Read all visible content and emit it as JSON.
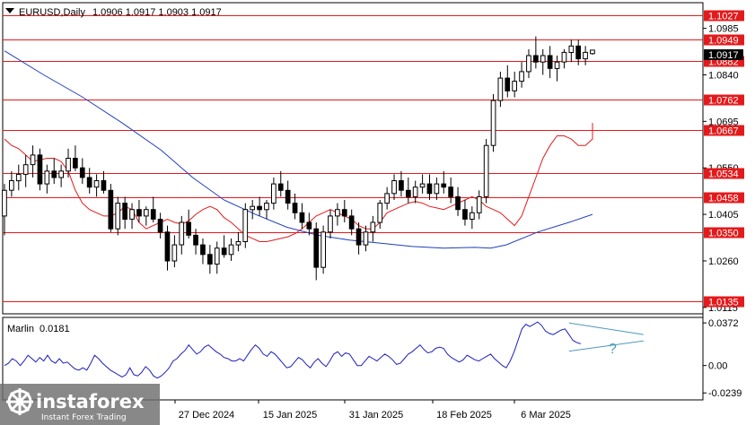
{
  "header": {
    "symbol_timeframe": "EURUSD,Daily",
    "ohlc": "1.0906 1.0917 1.0903 1.0917"
  },
  "colors": {
    "level_line": "#e31a1c",
    "level_label_bg": "#e31a1c",
    "ma_fast": "#e31a1c",
    "ma_slow": "#1f3fbf",
    "oscillator": "#1f1fbf",
    "trend_line": "#4a9ab8",
    "candle": "#000000",
    "current_price_bg": "#000000"
  },
  "logo": {
    "brand": "instaforex",
    "tagline": "Instant Forex Trading",
    "icon": "instaforex-logo-icon"
  },
  "chart_data": {
    "type": "candlestick",
    "price_axis": {
      "ylim": [
        1.0095,
        1.1065
      ],
      "tick_labels": [
        "1.0985",
        "1.0840",
        "1.0695",
        "1.0550",
        "1.0405",
        "1.0260",
        "1.0115"
      ]
    },
    "time_axis": {
      "labels": [
        "27 Dec 2024",
        "15 Jan 2025",
        "31 Jan 2025",
        "18 Feb 2025",
        "6 Mar 2025"
      ]
    },
    "current_price": "1.0917",
    "levels": [
      {
        "value": 1.1027,
        "label": "1.1027"
      },
      {
        "value": 1.0949,
        "label": "1.0949"
      },
      {
        "value": 1.0882,
        "label": "1.0882"
      },
      {
        "value": 1.0762,
        "label": "1.0762"
      },
      {
        "value": 1.0667,
        "label": "1.0667"
      },
      {
        "value": 1.0534,
        "label": "1.0534"
      },
      {
        "value": 1.0458,
        "label": "1.0458"
      },
      {
        "value": 1.035,
        "label": "1.0350"
      },
      {
        "value": 1.0135,
        "label": "1.0135"
      }
    ],
    "candles": [
      [
        1.04,
        1.05,
        1.034,
        1.048
      ],
      [
        1.048,
        1.054,
        1.046,
        1.051
      ],
      [
        1.051,
        1.056,
        1.048,
        1.053
      ],
      [
        1.053,
        1.059,
        1.049,
        1.056
      ],
      [
        1.056,
        1.062,
        1.052,
        1.059
      ],
      [
        1.059,
        1.061,
        1.048,
        1.05
      ],
      [
        1.05,
        1.056,
        1.047,
        1.054
      ],
      [
        1.054,
        1.058,
        1.05,
        1.052
      ],
      [
        1.052,
        1.056,
        1.049,
        1.054
      ],
      [
        1.054,
        1.061,
        1.052,
        1.058
      ],
      [
        1.058,
        1.062,
        1.054,
        1.055
      ],
      [
        1.055,
        1.058,
        1.05,
        1.052
      ],
      [
        1.052,
        1.055,
        1.047,
        1.049
      ],
      [
        1.049,
        1.053,
        1.046,
        1.051
      ],
      [
        1.051,
        1.054,
        1.047,
        1.048
      ],
      [
        1.048,
        1.05,
        1.035,
        1.036
      ],
      [
        1.036,
        1.046,
        1.034,
        1.044
      ],
      [
        1.044,
        1.046,
        1.036,
        1.039
      ],
      [
        1.039,
        1.044,
        1.036,
        1.042
      ],
      [
        1.042,
        1.045,
        1.038,
        1.04
      ],
      [
        1.04,
        1.043,
        1.037,
        1.042
      ],
      [
        1.042,
        1.046,
        1.038,
        1.039
      ],
      [
        1.039,
        1.041,
        1.033,
        1.035
      ],
      [
        1.035,
        1.037,
        1.023,
        1.026
      ],
      [
        1.026,
        1.034,
        1.024,
        1.031
      ],
      [
        1.031,
        1.04,
        1.028,
        1.038
      ],
      [
        1.038,
        1.042,
        1.033,
        1.034
      ],
      [
        1.034,
        1.036,
        1.028,
        1.031
      ],
      [
        1.031,
        1.033,
        1.025,
        1.028
      ],
      [
        1.028,
        1.031,
        1.022,
        1.025
      ],
      [
        1.025,
        1.032,
        1.022,
        1.03
      ],
      [
        1.03,
        1.034,
        1.027,
        1.028
      ],
      [
        1.028,
        1.033,
        1.026,
        1.031
      ],
      [
        1.031,
        1.035,
        1.029,
        1.032
      ],
      [
        1.032,
        1.044,
        1.03,
        1.042
      ],
      [
        1.042,
        1.045,
        1.039,
        1.043
      ],
      [
        1.043,
        1.046,
        1.04,
        1.042
      ],
      [
        1.042,
        1.045,
        1.039,
        1.044
      ],
      [
        1.044,
        1.052,
        1.042,
        1.05
      ],
      [
        1.05,
        1.054,
        1.046,
        1.048
      ],
      [
        1.048,
        1.051,
        1.042,
        1.044
      ],
      [
        1.044,
        1.047,
        1.039,
        1.041
      ],
      [
        1.041,
        1.044,
        1.036,
        1.038
      ],
      [
        1.038,
        1.041,
        1.034,
        1.036
      ],
      [
        1.036,
        1.038,
        1.02,
        1.024
      ],
      [
        1.024,
        1.037,
        1.022,
        1.035
      ],
      [
        1.035,
        1.042,
        1.033,
        1.04
      ],
      [
        1.04,
        1.044,
        1.037,
        1.042
      ],
      [
        1.042,
        1.045,
        1.038,
        1.04
      ],
      [
        1.04,
        1.042,
        1.034,
        1.036
      ],
      [
        1.036,
        1.038,
        1.028,
        1.031
      ],
      [
        1.031,
        1.037,
        1.029,
        1.035
      ],
      [
        1.035,
        1.04,
        1.032,
        1.038
      ],
      [
        1.038,
        1.045,
        1.036,
        1.044
      ],
      [
        1.044,
        1.049,
        1.042,
        1.047
      ],
      [
        1.047,
        1.053,
        1.045,
        1.051
      ],
      [
        1.051,
        1.054,
        1.046,
        1.048
      ],
      [
        1.048,
        1.052,
        1.044,
        1.046
      ],
      [
        1.046,
        1.051,
        1.044,
        1.049
      ],
      [
        1.049,
        1.053,
        1.047,
        1.05
      ],
      [
        1.05,
        1.053,
        1.045,
        1.047
      ],
      [
        1.047,
        1.052,
        1.045,
        1.05
      ],
      [
        1.05,
        1.054,
        1.047,
        1.049
      ],
      [
        1.049,
        1.052,
        1.044,
        1.046
      ],
      [
        1.046,
        1.049,
        1.04,
        1.042
      ],
      [
        1.042,
        1.045,
        1.037,
        1.039
      ],
      [
        1.039,
        1.043,
        1.036,
        1.041
      ],
      [
        1.041,
        1.048,
        1.039,
        1.046
      ],
      [
        1.046,
        1.064,
        1.044,
        1.062
      ],
      [
        1.062,
        1.078,
        1.06,
        1.076
      ],
      [
        1.076,
        1.085,
        1.074,
        1.083
      ],
      [
        1.083,
        1.087,
        1.077,
        1.079
      ],
      [
        1.079,
        1.085,
        1.077,
        1.082
      ],
      [
        1.082,
        1.088,
        1.08,
        1.085
      ],
      [
        1.085,
        1.092,
        1.083,
        1.09
      ],
      [
        1.09,
        1.096,
        1.086,
        1.088
      ],
      [
        1.088,
        1.092,
        1.084,
        1.09
      ],
      [
        1.09,
        1.093,
        1.083,
        1.086
      ],
      [
        1.086,
        1.09,
        1.082,
        1.088
      ],
      [
        1.088,
        1.092,
        1.086,
        1.091
      ],
      [
        1.091,
        1.095,
        1.088,
        1.093
      ],
      [
        1.093,
        1.095,
        1.087,
        1.089
      ],
      [
        1.089,
        1.093,
        1.087,
        1.091
      ],
      [
        1.0906,
        1.0917,
        1.0903,
        1.0917
      ]
    ],
    "ma_fast": [
      1.064,
      1.062,
      1.061,
      1.059,
      1.057,
      1.0575,
      1.058,
      1.058,
      1.057,
      1.054,
      1.048,
      1.044,
      1.042,
      1.041,
      1.04,
      1.04,
      1.041,
      1.043,
      1.042,
      1.038,
      1.036,
      1.037,
      1.038,
      1.039,
      1.038,
      1.0375,
      1.0385,
      1.0405,
      1.042,
      1.043,
      1.042,
      1.0395,
      1.038,
      1.036,
      1.034,
      1.033,
      1.032,
      1.032,
      1.0325,
      1.033,
      1.0335,
      1.0345,
      1.036,
      1.038,
      1.04,
      1.041,
      1.042,
      1.041,
      1.04,
      1.039,
      1.037,
      1.036,
      1.036,
      1.038,
      1.041,
      1.042,
      1.043,
      1.044,
      1.0445,
      1.044,
      1.043,
      1.0425,
      1.042,
      1.043,
      1.044,
      1.045,
      1.046,
      1.045,
      1.043,
      1.042,
      1.041,
      1.039,
      1.037,
      1.04,
      1.046,
      1.052,
      1.058,
      1.062,
      1.065,
      1.065,
      1.064,
      1.062,
      1.062,
      1.064,
      1.0655,
      1.067,
      1.069
    ],
    "ma_slow_points": [
      [
        0,
        1.0915
      ],
      [
        10,
        1.084
      ],
      [
        20,
        1.077
      ],
      [
        30,
        1.069
      ],
      [
        40,
        1.0605
      ],
      [
        48,
        1.052
      ],
      [
        56,
        1.045
      ],
      [
        64,
        1.0405
      ],
      [
        72,
        1.0365
      ],
      [
        80,
        1.034
      ],
      [
        88,
        1.0325
      ],
      [
        96,
        1.0315
      ],
      [
        104,
        1.0305
      ],
      [
        112,
        1.03
      ],
      [
        120,
        1.0302
      ],
      [
        124,
        1.03
      ],
      [
        128,
        1.031
      ],
      [
        136,
        1.035
      ],
      [
        144,
        1.038
      ],
      [
        150,
        1.0405
      ]
    ],
    "oscillator": {
      "name": "Marlin",
      "value_label": "0.0181",
      "ylim": [
        -0.03,
        0.042
      ],
      "tick_labels": [
        "0.0372",
        "0.00",
        "-0.0239"
      ],
      "annotation": "?",
      "values": [
        0.0,
        0.002,
        0.006,
        0.004,
        0.0,
        0.004,
        0.009,
        0.006,
        0.003,
        0.007,
        0.004,
        0.009,
        0.004,
        0.002,
        0.006,
        0.002,
        0.003,
        0.0,
        -0.003,
        -0.004,
        -0.002,
        -0.004,
        0.002,
        0.009,
        0.006,
        0.002,
        -0.001,
        -0.004,
        -0.006,
        -0.008,
        -0.01,
        -0.008,
        -0.002,
        -0.008,
        -0.009,
        -0.006,
        -0.001,
        -0.004,
        -0.009,
        -0.011,
        -0.009,
        -0.006,
        -0.002,
        0.004,
        0.006,
        0.01,
        0.013,
        0.018,
        0.014,
        0.01,
        0.012,
        0.016,
        0.018,
        0.015,
        0.012,
        0.01,
        0.007,
        0.006,
        0.004,
        0.004,
        0.006,
        0.004,
        0.009,
        0.014,
        0.018,
        0.015,
        0.01,
        0.008,
        0.012,
        0.01,
        0.006,
        0.002,
        -0.002,
        -0.001,
        0.003,
        0.007,
        0.005,
        0.001,
        -0.002,
        0.003,
        0.006,
        0.002,
        -0.001,
        0.004,
        0.01,
        0.012,
        0.008,
        0.011,
        0.01,
        0.005,
        0.0,
        0.0,
        0.004,
        0.008,
        0.006,
        0.004,
        0.007,
        0.01,
        0.008,
        0.005,
        0.001,
        0.002,
        0.006,
        0.01,
        0.012,
        0.015,
        0.018,
        0.014,
        0.011,
        0.012,
        0.015,
        0.016,
        0.015,
        0.01,
        0.007,
        0.005,
        0.003,
        0.005,
        0.009,
        0.007,
        0.005,
        0.004,
        0.006,
        0.008,
        0.01,
        0.006,
        0.003,
        0.0,
        -0.002,
        0.004,
        0.012,
        0.022,
        0.032,
        0.036,
        0.034,
        0.036,
        0.038,
        0.035,
        0.03,
        0.028,
        0.027,
        0.029,
        0.031,
        0.032,
        0.027,
        0.022,
        0.02,
        0.019
      ]
    },
    "trend_lines": [
      {
        "from": [
          144,
          0.0372
        ],
        "to": [
          163,
          0.027
        ]
      },
      {
        "from": [
          144,
          0.0125
        ],
        "to": [
          163,
          0.0215
        ]
      }
    ]
  }
}
